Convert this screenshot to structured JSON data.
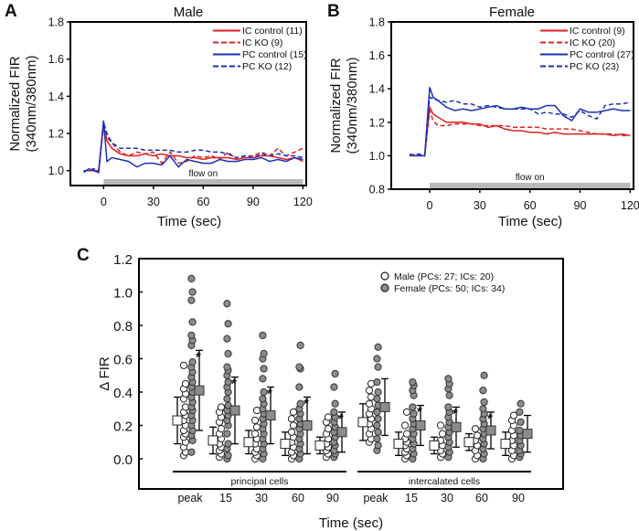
{
  "chart_data": [
    {
      "panel": "A",
      "type": "line",
      "title": "Male",
      "xlabel": "Time (sec)",
      "ylabel": "Normalized FIR (340nm/380nm)",
      "xlim": [
        -20,
        122
      ],
      "ylim": [
        0.92,
        1.8
      ],
      "xticks": [
        0,
        30,
        60,
        90,
        120
      ],
      "yticks": [
        1.0,
        1.2,
        1.4,
        1.6,
        1.8
      ],
      "annotation": "flow on",
      "legend_position": "top-right",
      "x": [
        -12,
        -9,
        -6,
        -3,
        0,
        2,
        5,
        10,
        15,
        20,
        25,
        30,
        35,
        40,
        45,
        50,
        55,
        60,
        65,
        70,
        75,
        80,
        85,
        90,
        95,
        100,
        105,
        110,
        115,
        120
      ],
      "series": [
        {
          "name": "IC control (11)",
          "color": "#e02020",
          "dash": false,
          "values": [
            1.0,
            1.0,
            1.0,
            1.0,
            1.25,
            1.16,
            1.12,
            1.09,
            1.08,
            1.08,
            1.09,
            1.08,
            1.09,
            1.08,
            1.08,
            1.07,
            1.07,
            1.06,
            1.07,
            1.07,
            1.07,
            1.06,
            1.07,
            1.07,
            1.08,
            1.08,
            1.07,
            1.06,
            1.07,
            1.05
          ]
        },
        {
          "name": "IC KO (9)",
          "color": "#e02020",
          "dash": true,
          "values": [
            1.0,
            1.0,
            1.01,
            1.0,
            1.24,
            1.18,
            1.15,
            1.1,
            1.08,
            1.1,
            1.09,
            1.1,
            1.04,
            1.1,
            1.04,
            1.05,
            1.08,
            1.07,
            1.08,
            1.06,
            1.1,
            1.06,
            1.08,
            1.08,
            1.1,
            1.08,
            1.12,
            1.08,
            1.1,
            1.12
          ]
        },
        {
          "name": "PC control (15)",
          "color": "#1c2fb8",
          "dash": false,
          "values": [
            0.99,
            1.01,
            1.0,
            0.99,
            1.27,
            1.05,
            1.07,
            1.06,
            1.05,
            1.02,
            1.04,
            1.04,
            1.03,
            1.08,
            1.02,
            1.06,
            1.05,
            1.04,
            1.04,
            1.06,
            1.05,
            1.05,
            1.06,
            1.06,
            1.07,
            1.05,
            1.06,
            1.05,
            1.07,
            1.06
          ]
        },
        {
          "name": "PC KO (12)",
          "color": "#1c2fb8",
          "dash": true,
          "values": [
            1.0,
            1.0,
            1.01,
            1.0,
            1.26,
            1.2,
            1.15,
            1.12,
            1.12,
            1.12,
            1.11,
            1.11,
            1.11,
            1.11,
            1.1,
            1.1,
            1.11,
            1.11,
            1.1,
            1.1,
            1.09,
            1.07,
            1.08,
            1.07,
            1.09,
            1.08,
            1.09,
            1.08,
            1.08,
            1.07
          ]
        }
      ]
    },
    {
      "panel": "B",
      "type": "line",
      "title": "Female",
      "xlabel": "Time (sec)",
      "ylabel": "Normalized FIR (340nm/380nm)",
      "xlim": [
        -23,
        122
      ],
      "ylim": [
        0.8,
        1.8
      ],
      "xticks": [
        0,
        30,
        60,
        90,
        120
      ],
      "yticks": [
        0.8,
        1.0,
        1.2,
        1.4,
        1.6,
        1.8
      ],
      "annotation": "flow on",
      "legend_position": "top-right",
      "x": [
        -12,
        -9,
        -6,
        -3,
        0,
        2,
        5,
        10,
        15,
        20,
        25,
        30,
        35,
        40,
        45,
        50,
        55,
        60,
        65,
        70,
        75,
        80,
        85,
        90,
        95,
        100,
        105,
        110,
        115,
        120
      ],
      "series": [
        {
          "name": "IC control (9)",
          "color": "#e02020",
          "dash": false,
          "values": [
            1.0,
            1.0,
            1.0,
            1.0,
            1.29,
            1.25,
            1.23,
            1.2,
            1.2,
            1.2,
            1.19,
            1.19,
            1.17,
            1.18,
            1.16,
            1.15,
            1.15,
            1.14,
            1.14,
            1.13,
            1.14,
            1.13,
            1.13,
            1.13,
            1.13,
            1.13,
            1.13,
            1.12,
            1.13,
            1.12
          ]
        },
        {
          "name": "IC KO (20)",
          "color": "#e02020",
          "dash": true,
          "values": [
            1.0,
            1.0,
            1.0,
            1.0,
            1.27,
            1.21,
            1.18,
            1.18,
            1.19,
            1.19,
            1.19,
            1.18,
            1.18,
            1.18,
            1.18,
            1.17,
            1.17,
            1.17,
            1.17,
            1.16,
            1.16,
            1.16,
            1.16,
            1.15,
            1.14,
            1.13,
            1.13,
            1.13,
            1.12,
            1.12
          ]
        },
        {
          "name": "PC control (27)",
          "color": "#1c2fb8",
          "dash": false,
          "values": [
            1.01,
            1.0,
            1.0,
            1.0,
            1.41,
            1.35,
            1.33,
            1.29,
            1.27,
            1.28,
            1.27,
            1.28,
            1.29,
            1.3,
            1.28,
            1.28,
            1.29,
            1.28,
            1.28,
            1.3,
            1.3,
            1.24,
            1.21,
            1.28,
            1.26,
            1.26,
            1.27,
            1.28,
            1.27,
            1.27
          ]
        },
        {
          "name": "PC KO (23)",
          "color": "#1c2fb8",
          "dash": true,
          "values": [
            1.0,
            1.01,
            1.01,
            1.0,
            1.35,
            1.34,
            1.33,
            1.32,
            1.33,
            1.31,
            1.31,
            1.29,
            1.3,
            1.29,
            1.28,
            1.28,
            1.28,
            1.28,
            1.25,
            1.26,
            1.25,
            1.25,
            1.23,
            1.27,
            1.24,
            1.22,
            1.3,
            1.31,
            1.31,
            1.32
          ]
        }
      ]
    },
    {
      "panel": "C",
      "type": "scatter",
      "xlabel": "Time (sec)",
      "ylabel": "Δ FIR",
      "ylim": [
        -0.18,
        1.2
      ],
      "yticks": [
        "0.0",
        "0.2",
        "0.4",
        "0.6",
        "0.8",
        "1.0",
        "1.2"
      ],
      "legend_position": "top-right",
      "legend": [
        {
          "name": "Male (PCs: 27; ICs: 20)",
          "fill": "#ffffff"
        },
        {
          "name": "Female (PCs: 50; ICs: 34)",
          "fill": "#8c8c8c"
        }
      ],
      "group_labels": [
        "principal cells",
        "intercalated cells"
      ],
      "significance_mark": "*",
      "categories": [
        {
          "group": "principal cells",
          "label": "peak",
          "sig": true,
          "male": {
            "mean": 0.23,
            "sd": 0.14,
            "points": [
              0.02,
              0.04,
              0.07,
              0.1,
              0.13,
              0.15,
              0.17,
              0.2,
              0.23,
              0.26,
              0.28,
              0.31,
              0.36,
              0.39,
              0.42,
              0.45,
              0.56
            ]
          },
          "female": {
            "mean": 0.41,
            "sd": 0.24,
            "points": [
              0.04,
              0.11,
              0.14,
              0.17,
              0.2,
              0.23,
              0.26,
              0.29,
              0.31,
              0.34,
              0.37,
              0.4,
              0.43,
              0.46,
              0.49,
              0.52,
              0.55,
              0.58,
              0.68,
              0.71,
              0.74,
              0.82,
              0.95,
              1.0,
              1.08
            ]
          }
        },
        {
          "group": "principal cells",
          "label": "15",
          "sig": true,
          "male": {
            "mean": 0.11,
            "sd": 0.08,
            "points": [
              0.01,
              0.03,
              0.05,
              0.07,
              0.09,
              0.12,
              0.15,
              0.18,
              0.22,
              0.25,
              0.28,
              0.31
            ]
          },
          "female": {
            "mean": 0.29,
            "sd": 0.2,
            "points": [
              0.0,
              0.02,
              0.06,
              0.09,
              0.15,
              0.2,
              0.23,
              0.26,
              0.29,
              0.32,
              0.36,
              0.4,
              0.43,
              0.46,
              0.5,
              0.53,
              0.55,
              0.63,
              0.72,
              0.81,
              0.93
            ]
          }
        },
        {
          "group": "principal cells",
          "label": "30",
          "sig": true,
          "male": {
            "mean": 0.1,
            "sd": 0.07,
            "points": [
              0.0,
              0.02,
              0.04,
              0.06,
              0.09,
              0.12,
              0.15,
              0.19,
              0.23,
              0.29
            ]
          },
          "female": {
            "mean": 0.26,
            "sd": 0.17,
            "points": [
              0.0,
              0.03,
              0.06,
              0.09,
              0.12,
              0.15,
              0.18,
              0.21,
              0.24,
              0.27,
              0.3,
              0.33,
              0.36,
              0.4,
              0.48,
              0.54,
              0.6,
              0.63,
              0.74
            ]
          }
        },
        {
          "group": "principal cells",
          "label": "60",
          "sig": true,
          "male": {
            "mean": 0.09,
            "sd": 0.07,
            "points": [
              0.0,
              0.02,
              0.04,
              0.07,
              0.1,
              0.13,
              0.16,
              0.2,
              0.24,
              0.28
            ]
          },
          "female": {
            "mean": 0.2,
            "sd": 0.17,
            "points": [
              0.0,
              0.03,
              0.06,
              0.09,
              0.12,
              0.15,
              0.18,
              0.21,
              0.24,
              0.27,
              0.3,
              0.33,
              0.43,
              0.54,
              0.55,
              0.68
            ]
          }
        },
        {
          "group": "principal cells",
          "label": "90",
          "sig": true,
          "male": {
            "mean": 0.08,
            "sd": 0.05,
            "points": [
              0.01,
              0.03,
              0.05,
              0.07,
              0.09,
              0.12,
              0.15,
              0.18,
              0.22,
              0.25
            ]
          },
          "female": {
            "mean": 0.16,
            "sd": 0.12,
            "points": [
              0.01,
              0.03,
              0.05,
              0.08,
              0.1,
              0.13,
              0.16,
              0.19,
              0.22,
              0.25,
              0.28,
              0.33,
              0.43,
              0.51
            ]
          }
        },
        {
          "group": "intercalated cells",
          "label": "peak",
          "sig": false,
          "male": {
            "mean": 0.22,
            "sd": 0.11,
            "points": [
              0.1,
              0.12,
              0.15,
              0.18,
              0.21,
              0.24,
              0.27,
              0.3,
              0.33,
              0.37,
              0.41,
              0.45
            ]
          },
          "female": {
            "mean": 0.31,
            "sd": 0.17,
            "points": [
              0.05,
              0.08,
              0.12,
              0.16,
              0.2,
              0.24,
              0.28,
              0.32,
              0.36,
              0.4,
              0.46,
              0.55,
              0.6,
              0.67
            ]
          }
        },
        {
          "group": "intercalated cells",
          "label": "15",
          "sig": true,
          "male": {
            "mean": 0.09,
            "sd": 0.07,
            "points": [
              0.0,
              0.02,
              0.04,
              0.06,
              0.08,
              0.1,
              0.12,
              0.15,
              0.2,
              0.28
            ]
          },
          "female": {
            "mean": 0.2,
            "sd": 0.12,
            "points": [
              0.0,
              0.03,
              0.06,
              0.09,
              0.12,
              0.15,
              0.18,
              0.21,
              0.24,
              0.27,
              0.31,
              0.38,
              0.41,
              0.44,
              0.46
            ]
          }
        },
        {
          "group": "intercalated cells",
          "label": "30",
          "sig": true,
          "male": {
            "mean": 0.08,
            "sd": 0.05,
            "points": [
              0.01,
              0.03,
              0.05,
              0.08,
              0.11,
              0.15,
              0.2
            ]
          },
          "female": {
            "mean": 0.19,
            "sd": 0.12,
            "points": [
              0.01,
              0.04,
              0.07,
              0.1,
              0.13,
              0.16,
              0.19,
              0.22,
              0.25,
              0.28,
              0.31,
              0.38,
              0.42,
              0.45,
              0.48
            ]
          }
        },
        {
          "group": "intercalated cells",
          "label": "60",
          "sig": true,
          "male": {
            "mean": 0.1,
            "sd": 0.05,
            "points": [
              0.0,
              0.02,
              0.05,
              0.08,
              0.11,
              0.14,
              0.18
            ]
          },
          "female": {
            "mean": 0.17,
            "sd": 0.11,
            "points": [
              0.0,
              0.03,
              0.06,
              0.09,
              0.12,
              0.15,
              0.18,
              0.21,
              0.24,
              0.27,
              0.3,
              0.34,
              0.41,
              0.5
            ]
          }
        },
        {
          "group": "intercalated cells",
          "label": "90",
          "sig": false,
          "male": {
            "mean": 0.09,
            "sd": 0.07,
            "points": [
              0.0,
              0.02,
              0.05,
              0.08,
              0.11,
              0.14,
              0.17,
              0.2,
              0.23,
              0.26
            ]
          },
          "female": {
            "mean": 0.15,
            "sd": 0.11,
            "points": [
              0.01,
              0.03,
              0.05,
              0.08,
              0.11,
              0.14,
              0.17,
              0.22,
              0.28,
              0.33
            ]
          }
        }
      ]
    }
  ]
}
